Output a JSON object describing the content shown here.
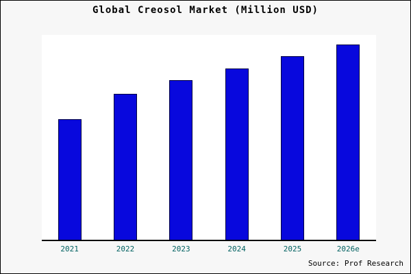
{
  "chart_data": {
    "type": "bar",
    "title": "Global Creosol Market (Million USD)",
    "categories": [
      "2021",
      "2022",
      "2023",
      "2024",
      "2025",
      "2026e"
    ],
    "values": [
      62,
      75,
      82,
      88,
      94,
      100
    ],
    "xlabel": "",
    "ylabel": "",
    "ylim": [
      0,
      105
    ],
    "grid": false,
    "legend": "none",
    "bar_color": "#0808dd",
    "bar_border_color": "#000040",
    "plot_background": "#ffffff",
    "figure_background": "#f7f7f7",
    "tick_label_color": "#006060"
  },
  "source": {
    "text": "Source: Prof Research"
  }
}
